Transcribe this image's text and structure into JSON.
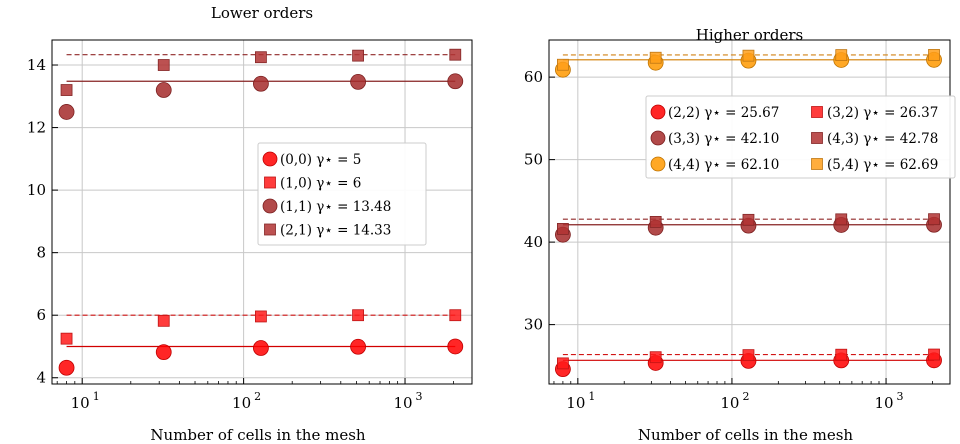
{
  "chart_data": [
    {
      "type": "scatter",
      "title": "Lower orders",
      "xlabel": "Number of cells in the mesh",
      "ylabel": "",
      "xscale": "log",
      "xlim": [
        6.5,
        2600
      ],
      "ylim": [
        3.8,
        14.8
      ],
      "xticks": [
        10,
        100,
        1000
      ],
      "xtick_labels": [
        {
          "base": "10",
          "exp": "1"
        },
        {
          "base": "10",
          "exp": "2"
        },
        {
          "base": "10",
          "exp": "3"
        }
      ],
      "yticks": [
        4,
        6,
        8,
        10,
        12,
        14
      ],
      "grid": true,
      "legend_position": "center-right",
      "x": [
        8,
        32,
        128,
        512,
        2048
      ],
      "series": [
        {
          "name": "(0,0) γ⋆ = 5",
          "marker": "circle",
          "color": "#ff0000",
          "line_style": "solid",
          "reference": 5,
          "values": [
            4.32,
            4.82,
            4.95,
            4.99,
            5.0
          ]
        },
        {
          "name": "(1,0) γ⋆ = 6",
          "marker": "square",
          "color": "#ff1a1a",
          "line_style": "dashed",
          "reference": 6,
          "values": [
            5.25,
            5.82,
            5.96,
            6.0,
            6.0
          ]
        },
        {
          "name": "(1,1) γ⋆ = 13.48",
          "marker": "circle",
          "color": "#a52a2a",
          "line_style": "solid",
          "reference": 13.48,
          "values": [
            12.5,
            13.2,
            13.4,
            13.46,
            13.48
          ]
        },
        {
          "name": "(2,1) γ⋆ = 14.33",
          "marker": "square",
          "color": "#b03232",
          "line_style": "dashed",
          "reference": 14.33,
          "values": [
            13.2,
            14.0,
            14.25,
            14.3,
            14.33
          ]
        }
      ]
    },
    {
      "type": "scatter",
      "title": "Higher orders",
      "xlabel": "Number of cells in the mesh",
      "ylabel": "",
      "xscale": "log",
      "xlim": [
        6.5,
        2600
      ],
      "ylim": [
        22.8,
        64.5
      ],
      "xticks": [
        10,
        100,
        1000
      ],
      "xtick_labels": [
        {
          "base": "10",
          "exp": "1"
        },
        {
          "base": "10",
          "exp": "2"
        },
        {
          "base": "10",
          "exp": "3"
        }
      ],
      "yticks": [
        30,
        40,
        50,
        60
      ],
      "grid": true,
      "legend_position": "center-right",
      "x": [
        8,
        32,
        128,
        512,
        2048
      ],
      "series": [
        {
          "name": "(2,2) γ⋆ = 25.67",
          "marker": "circle",
          "color": "#ff0000",
          "line_style": "solid",
          "reference": 25.67,
          "values": [
            24.6,
            25.35,
            25.6,
            25.66,
            25.67
          ]
        },
        {
          "name": "(3,2) γ⋆ = 26.37",
          "marker": "square",
          "color": "#ff1a1a",
          "line_style": "dashed",
          "reference": 26.37,
          "values": [
            25.3,
            26.05,
            26.3,
            26.35,
            26.37
          ]
        },
        {
          "name": "(3,3) γ⋆ = 42.10",
          "marker": "circle",
          "color": "#a52a2a",
          "line_style": "solid",
          "reference": 42.1,
          "values": [
            40.9,
            41.75,
            42.0,
            42.08,
            42.1
          ]
        },
        {
          "name": "(4,3) γ⋆ = 42.78",
          "marker": "square",
          "color": "#b03232",
          "line_style": "dashed",
          "reference": 42.78,
          "values": [
            41.6,
            42.45,
            42.7,
            42.76,
            42.78
          ]
        },
        {
          "name": "(4,4) γ⋆ = 62.10",
          "marker": "circle",
          "color": "#ff9900",
          "line_style": "solid",
          "reference": 62.1,
          "values": [
            60.9,
            61.75,
            62.0,
            62.08,
            62.1
          ]
        },
        {
          "name": "(5,4) γ⋆ = 62.69",
          "marker": "square",
          "color": "#ff9f1a",
          "line_style": "dashed",
          "reference": 62.69,
          "values": [
            61.5,
            62.35,
            62.6,
            62.67,
            62.69
          ]
        }
      ]
    }
  ]
}
